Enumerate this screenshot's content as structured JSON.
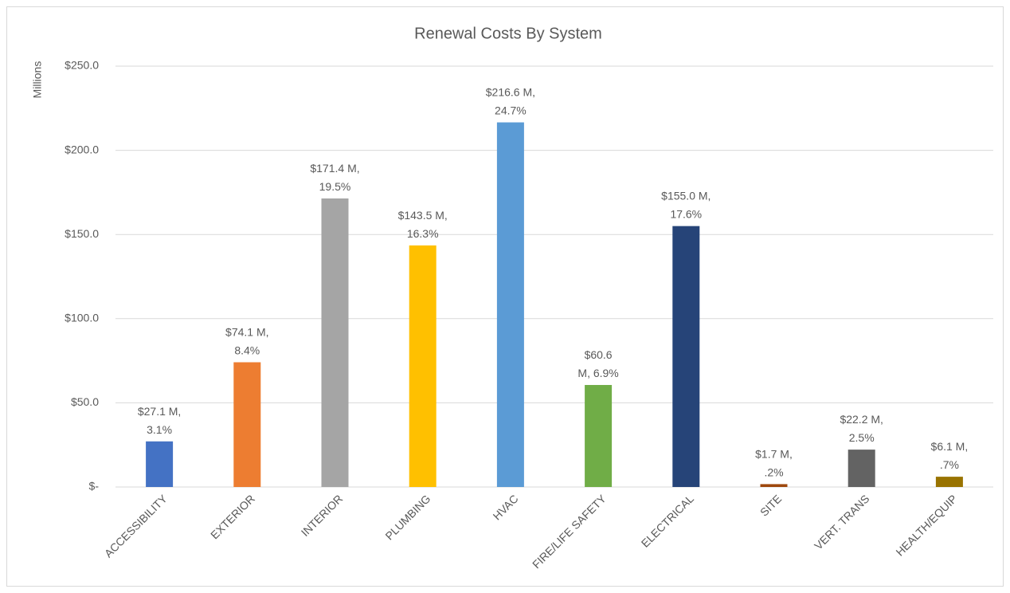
{
  "chart_data": {
    "type": "bar",
    "title": "Renewal Costs By System",
    "y_label": "Millions",
    "categories": [
      "ACCESSIBILITY",
      "EXTERIOR",
      "INTERIOR",
      "PLUMBING",
      "HVAC",
      "FIRE/LIFE SAFETY",
      "ELECTRICAL",
      "SITE",
      "VERT. TRANS",
      "HEALTH/EQUIP"
    ],
    "values": [
      27.1,
      74.1,
      171.4,
      143.5,
      216.6,
      60.6,
      155.0,
      1.7,
      22.2,
      6.1
    ],
    "value_labels": [
      [
        "$27.1 M,",
        "3.1%"
      ],
      [
        "$74.1 M,",
        "8.4%"
      ],
      [
        "$171.4 M,",
        "19.5%"
      ],
      [
        "$143.5 M,",
        "16.3%"
      ],
      [
        "$216.6 M,",
        "24.7%"
      ],
      [
        "$60.6",
        "M, 6.9%"
      ],
      [
        "$155.0 M,",
        "17.6%"
      ],
      [
        "$1.7 M,",
        ".2%"
      ],
      [
        "$22.2 M,",
        "2.5%"
      ],
      [
        "$6.1 M,",
        ".7%"
      ]
    ],
    "colors": [
      "#4472c4",
      "#ed7d31",
      "#a5a5a5",
      "#ffc000",
      "#5b9bd5",
      "#70ad47",
      "#264478",
      "#9e480e",
      "#636363",
      "#997300"
    ],
    "ylim": [
      0,
      250
    ],
    "yticks": [
      {
        "value": 0,
        "label": "$-"
      },
      {
        "value": 50,
        "label": "$50.0"
      },
      {
        "value": 100,
        "label": "$100.0"
      },
      {
        "value": 150,
        "label": "$150.0"
      },
      {
        "value": 200,
        "label": "$200.0"
      },
      {
        "value": 250,
        "label": "$250.0"
      }
    ],
    "grid": true
  }
}
